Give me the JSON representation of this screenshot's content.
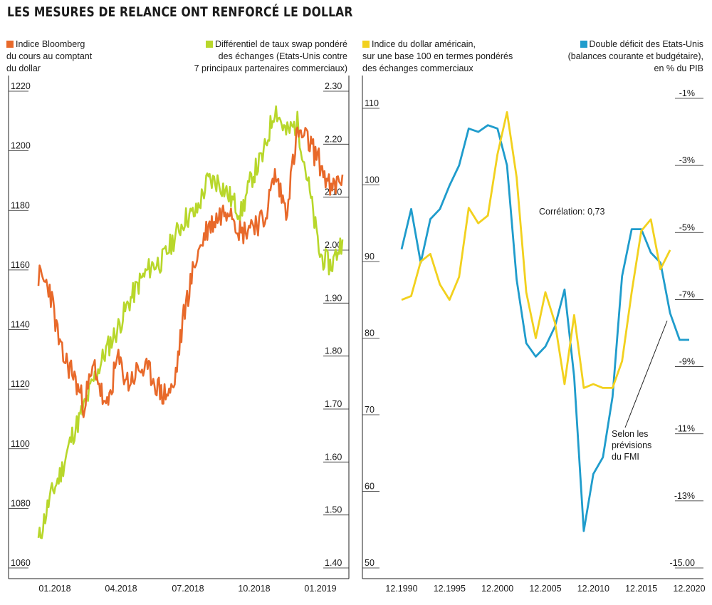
{
  "title": "LES MESURES DE RELANCE ONT RENFORCÉ LE DOLLAR",
  "colors": {
    "orange": "#e8692a",
    "lime": "#b8d72b",
    "yellow": "#f2d11e",
    "blue": "#1f9ccc",
    "axis": "#222222"
  },
  "left_chart": {
    "legend_left": {
      "lines": [
        "Indice Bloomberg",
        "du cours au comptant",
        "du dollar"
      ]
    },
    "legend_right": {
      "lines": [
        "Différentiel de taux swap pondéré",
        "des échanges (Etats-Unis contre",
        "7 principaux partenaires commerciaux)"
      ]
    }
  },
  "right_chart": {
    "legend_left": {
      "lines": [
        "Indice du dollar américain,",
        "sur une base 100 en termes pondérés",
        "des échanges commerciaux"
      ]
    },
    "legend_right": {
      "lines": [
        "Double déficit des Etats-Unis",
        "(balances courante et budgétaire),",
        "en % du PIB"
      ]
    },
    "correlation_label": "Corrélation: 0,73",
    "forecast_note": [
      "Selon les",
      "prévisions",
      "du FMI"
    ]
  },
  "chart_data": [
    {
      "type": "line",
      "title": "",
      "x_ticks": [
        "01.2018",
        "04.2018",
        "07.2018",
        "10.2018",
        "01.2019"
      ],
      "y_left": {
        "label": "Indice Bloomberg du cours au comptant du dollar",
        "ticks": [
          "1220",
          "1200",
          "1180",
          "1160",
          "1140",
          "1120",
          "1100",
          "1080",
          "1060"
        ],
        "range": [
          1060,
          1220
        ]
      },
      "y_right": {
        "label": "Différentiel de taux swap pondéré des échanges",
        "ticks": [
          "2.30",
          "2.20",
          "2.10",
          "2.00",
          "1.90",
          "1.80",
          "1.70",
          "1.60",
          "1.50",
          "1.40"
        ],
        "range": [
          1.4,
          2.3
        ]
      },
      "series": [
        {
          "name": "Indice Bloomberg du cours au comptant du dollar",
          "axis": "left",
          "color": "#e8692a",
          "x": [
            0.0,
            0.5,
            1.0,
            1.5,
            2.0,
            2.5,
            3.0,
            3.5,
            4.0,
            4.5,
            5.0,
            5.5,
            6.0,
            6.5,
            7.0,
            7.5,
            8.0,
            8.5,
            9.0,
            9.5,
            10.0,
            10.5,
            11.0,
            11.5,
            12.0,
            12.5,
            13.0,
            13.5
          ],
          "values": [
            1158,
            1154,
            1132,
            1126,
            1115,
            1128,
            1112,
            1130,
            1122,
            1127,
            1125,
            1118,
            1120,
            1147,
            1164,
            1174,
            1178,
            1182,
            1172,
            1176,
            1176,
            1192,
            1180,
            1206,
            1203,
            1196,
            1186,
            1192
          ]
        },
        {
          "name": "Différentiel de taux swap pondéré des échanges",
          "axis": "right",
          "color": "#b8d72b",
          "x": [
            0.0,
            0.5,
            1.0,
            1.5,
            2.0,
            2.5,
            3.0,
            3.5,
            4.0,
            4.5,
            5.0,
            5.5,
            6.0,
            6.5,
            7.0,
            7.5,
            8.0,
            8.5,
            9.0,
            9.5,
            10.0,
            10.5,
            11.0,
            11.5,
            12.0,
            12.5,
            13.0,
            13.5
          ],
          "values": [
            1.45,
            1.53,
            1.58,
            1.65,
            1.7,
            1.76,
            1.81,
            1.85,
            1.9,
            1.94,
            1.97,
            1.98,
            2.02,
            2.06,
            2.07,
            2.13,
            2.13,
            2.1,
            2.07,
            2.14,
            2.18,
            2.27,
            2.22,
            2.24,
            2.12,
            1.99,
            1.97,
            2.02
          ]
        }
      ]
    },
    {
      "type": "line",
      "title": "",
      "x_ticks": [
        "12.1990",
        "12.1995",
        "12.2000",
        "12.2005",
        "12.2010",
        "12.2015",
        "12.2020"
      ],
      "y_left": {
        "label": "Indice du dollar américain (base 100)",
        "ticks": [
          "110",
          "100",
          "90",
          "80",
          "70",
          "60",
          "50"
        ],
        "range": [
          50,
          110
        ]
      },
      "y_right": {
        "label": "Double déficit des Etats-Unis, en % du PIB",
        "ticks": [
          "-1%",
          "-3%",
          "-5%",
          "-7%",
          "-9%",
          "-11%",
          "-13%",
          "-15.00"
        ],
        "range": [
          -15,
          -1
        ]
      },
      "series": [
        {
          "name": "Indice du dollar américain",
          "axis": "left",
          "color": "#f2d11e",
          "x": [
            1990,
            1991,
            1992,
            1993,
            1994,
            1995,
            1996,
            1997,
            1998,
            1999,
            2000,
            2001,
            2002,
            2003,
            2004,
            2005,
            2006,
            2007,
            2008,
            2009,
            2010,
            2011,
            2012,
            2013,
            2014,
            2015,
            2016,
            2017,
            2018
          ],
          "values": [
            85,
            85.5,
            90,
            91,
            87,
            85,
            88,
            97,
            95,
            96,
            104,
            109.5,
            101,
            86,
            80,
            86,
            82,
            74,
            83,
            73.5,
            74,
            73.5,
            73.5,
            77,
            86,
            94,
            95.5,
            89,
            91.5
          ]
        },
        {
          "name": "Double déficit des Etats-Unis (% du PIB)",
          "axis": "right",
          "color": "#1f9ccc",
          "x": [
            1990,
            1991,
            1992,
            1993,
            1994,
            1995,
            1996,
            1997,
            1998,
            1999,
            2000,
            2001,
            2002,
            2003,
            2004,
            2005,
            2006,
            2007,
            2008,
            2009,
            2010,
            2011,
            2012,
            2013,
            2014,
            2015,
            2016,
            2017,
            2018,
            2019,
            2020
          ],
          "values": [
            -5.5,
            -4.3,
            -5.9,
            -4.6,
            -4.3,
            -3.6,
            -3.0,
            -1.9,
            -2.0,
            -1.8,
            -1.9,
            -3.0,
            -6.4,
            -8.3,
            -8.7,
            -8.4,
            -7.8,
            -6.7,
            -9.3,
            -13.9,
            -12.2,
            -11.7,
            -9.9,
            -6.3,
            -4.9,
            -4.9,
            -5.6,
            -5.9,
            -7.4,
            -8.2,
            -8.2
          ]
        }
      ]
    }
  ]
}
